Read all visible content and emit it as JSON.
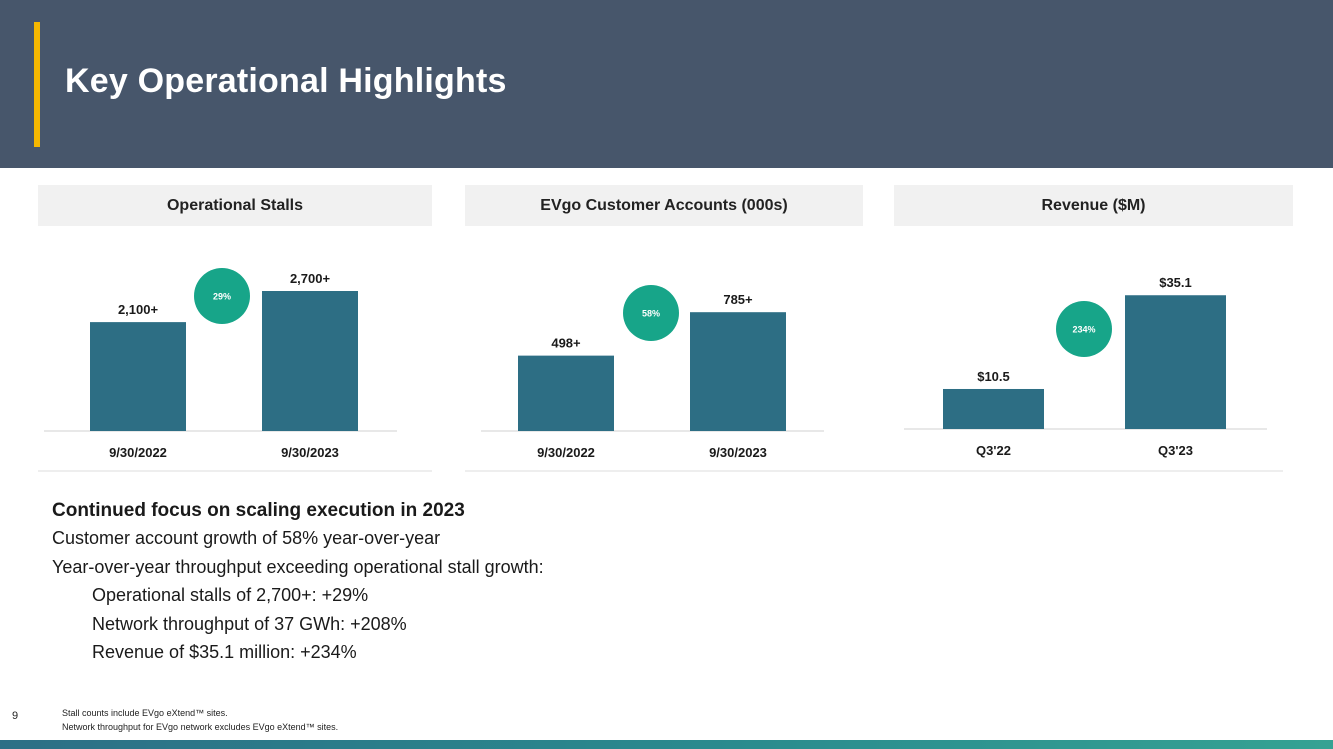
{
  "header": {
    "title": "Key Operational Highlights"
  },
  "charts_panel": {
    "titles": [
      "Operational Stalls",
      "EVgo Customer Accounts (000s)",
      "Revenue ($M)"
    ]
  },
  "chart_data": [
    {
      "type": "bar",
      "title": "Operational Stalls",
      "categories": [
        "9/30/2022",
        "9/30/2023"
      ],
      "values": [
        2100,
        2700
      ],
      "data_labels": [
        "2,100+",
        "2,700+"
      ],
      "growth_badge": "29%",
      "ylim": [
        0,
        2700
      ],
      "grid": false,
      "legend": "none",
      "bar_color": "#2d6e84",
      "badge_color": "#17a589"
    },
    {
      "type": "bar",
      "title": "EVgo Customer Accounts (000s)",
      "categories": [
        "9/30/2022",
        "9/30/2023"
      ],
      "values": [
        498,
        785
      ],
      "data_labels": [
        "498+",
        "785+"
      ],
      "growth_badge": "58%",
      "ylim": [
        0,
        925
      ],
      "grid": false,
      "legend": "none",
      "bar_color": "#2d6e84",
      "badge_color": "#17a589"
    },
    {
      "type": "bar",
      "title": "Revenue ($M)",
      "categories": [
        "Q3'22",
        "Q3'23"
      ],
      "values": [
        10.5,
        35.1
      ],
      "data_labels": [
        "$10.5",
        "$35.1"
      ],
      "growth_badge": "234%",
      "ylim": [
        0,
        37
      ],
      "grid": false,
      "legend": "none",
      "bar_color": "#2d6e84",
      "badge_color": "#17a589"
    }
  ],
  "summary": {
    "heading": "Continued focus on scaling execution in 2023",
    "lines": [
      "Customer account growth of 58% year-over-year",
      "Year-over-year throughput exceeding operational stall growth:"
    ],
    "sub_lines": [
      "Operational stalls of 2,700+: +29%",
      "Network throughput of 37 GWh: +208%",
      "Revenue of $35.1 million: +234%"
    ]
  },
  "footer": {
    "page_number": "9",
    "notes": [
      "Stall counts include EVgo eXtend™ sites.",
      "Network throughput for EVgo network excludes EVgo eXtend™ sites."
    ]
  }
}
